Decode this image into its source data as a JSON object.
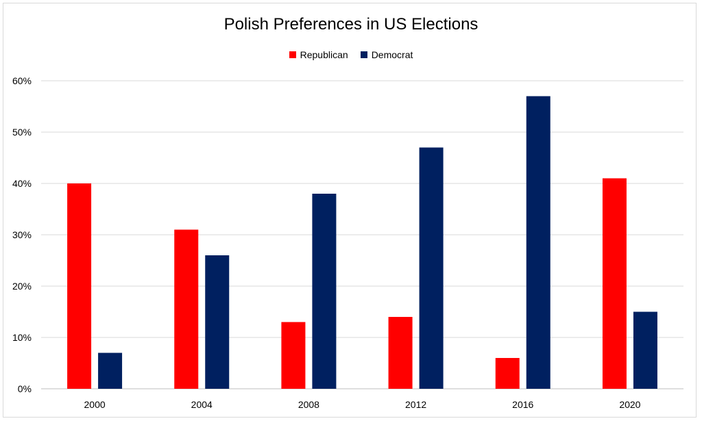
{
  "chart_data": {
    "type": "bar",
    "title": "Polish Preferences in US Elections",
    "categories": [
      "2000",
      "2004",
      "2008",
      "2012",
      "2016",
      "2020"
    ],
    "series": [
      {
        "name": "Republican",
        "color": "#ff0000",
        "values": [
          40,
          31,
          13,
          14,
          6,
          41
        ]
      },
      {
        "name": "Democrat",
        "color": "#002060",
        "values": [
          7,
          26,
          38,
          47,
          57,
          15
        ]
      }
    ],
    "ylim": [
      0,
      60
    ],
    "yticks": [
      0,
      10,
      20,
      30,
      40,
      50,
      60
    ],
    "ytick_labels": [
      "0%",
      "10%",
      "20%",
      "30%",
      "40%",
      "50%",
      "60%"
    ],
    "xlabel": "",
    "ylabel": "",
    "grid": true,
    "legend_position": "top"
  }
}
